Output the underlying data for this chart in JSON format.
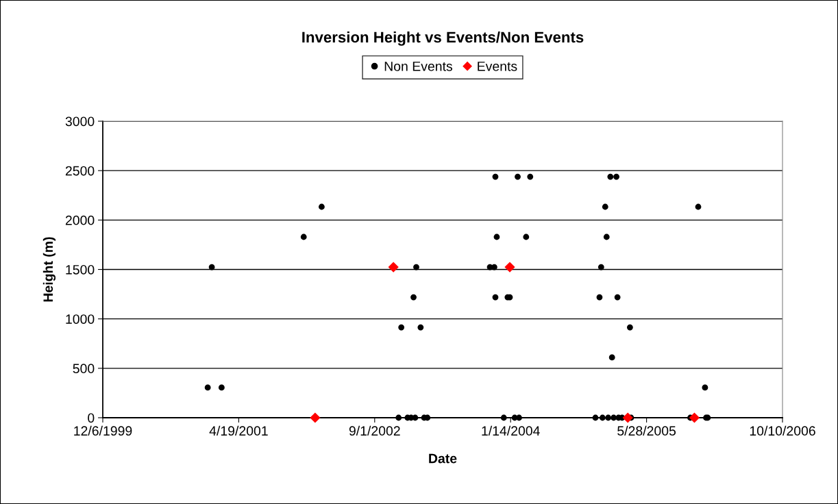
{
  "chart_data": {
    "type": "scatter",
    "title": "Inversion Height vs Events/Non Events",
    "xlabel": "Date",
    "ylabel": "Height (m)",
    "xlim": [
      "1999-12-06",
      "2006-10-10"
    ],
    "xticks": [
      {
        "value": "1999-12-06",
        "label": "12/6/1999"
      },
      {
        "value": "2001-04-19",
        "label": "4/19/2001"
      },
      {
        "value": "2002-09-01",
        "label": "9/1/2002"
      },
      {
        "value": "2004-01-14",
        "label": "1/14/2004"
      },
      {
        "value": "2005-05-28",
        "label": "5/28/2005"
      },
      {
        "value": "2006-10-10",
        "label": "10/10/2006"
      }
    ],
    "ylim": [
      0,
      3000
    ],
    "yticks": [
      0,
      500,
      1000,
      1500,
      2000,
      2500,
      3000
    ],
    "grid": "y",
    "legend": "top",
    "series": [
      {
        "name": "Non Events",
        "color": "#000000",
        "marker": "circle",
        "x": [
          "2000-12-26",
          "2001-01-10",
          "2001-02-15",
          "2001-12-14",
          "2002-02-18",
          "2002-11-28",
          "2002-12-08",
          "2002-12-31",
          "2003-01-13",
          "2003-01-22",
          "2003-01-28",
          "2003-02-01",
          "2003-02-17",
          "2003-03-02",
          "2003-03-14",
          "2003-10-30",
          "2003-11-15",
          "2003-11-19",
          "2003-11-19",
          "2003-11-24",
          "2003-12-20",
          "2004-01-03",
          "2004-01-11",
          "2004-01-29",
          "2004-02-09",
          "2004-02-14",
          "2004-03-11",
          "2004-03-26",
          "2004-11-21",
          "2004-12-06",
          "2004-12-12",
          "2004-12-17",
          "2004-12-27",
          "2005-01-01",
          "2005-01-07",
          "2005-01-15",
          "2005-01-21",
          "2005-01-27",
          "2005-02-06",
          "2005-02-10",
          "2005-02-14",
          "2005-02-27",
          "2005-03-28",
          "2005-04-01",
          "2005-11-05",
          "2005-12-04",
          "2005-12-29",
          "2006-01-02",
          "2006-01-08"
        ],
        "values": [
          305,
          1524,
          305,
          1829,
          2134,
          0,
          914,
          0,
          0,
          1219,
          0,
          1524,
          914,
          0,
          0,
          1524,
          1524,
          2438,
          1219,
          1829,
          0,
          1219,
          1219,
          0,
          2438,
          0,
          1829,
          2438,
          0,
          1219,
          1524,
          0,
          2134,
          1829,
          0,
          2438,
          610,
          0,
          2438,
          1219,
          0,
          0,
          914,
          0,
          0,
          2134,
          305,
          0,
          0
        ]
      },
      {
        "name": "Events",
        "color": "#ff0000",
        "marker": "diamond",
        "x": [
          "2002-01-25",
          "2002-11-09",
          "2004-01-11",
          "2005-03-20",
          "2005-11-20"
        ],
        "values": [
          0,
          1524,
          1524,
          0,
          0
        ]
      }
    ]
  }
}
